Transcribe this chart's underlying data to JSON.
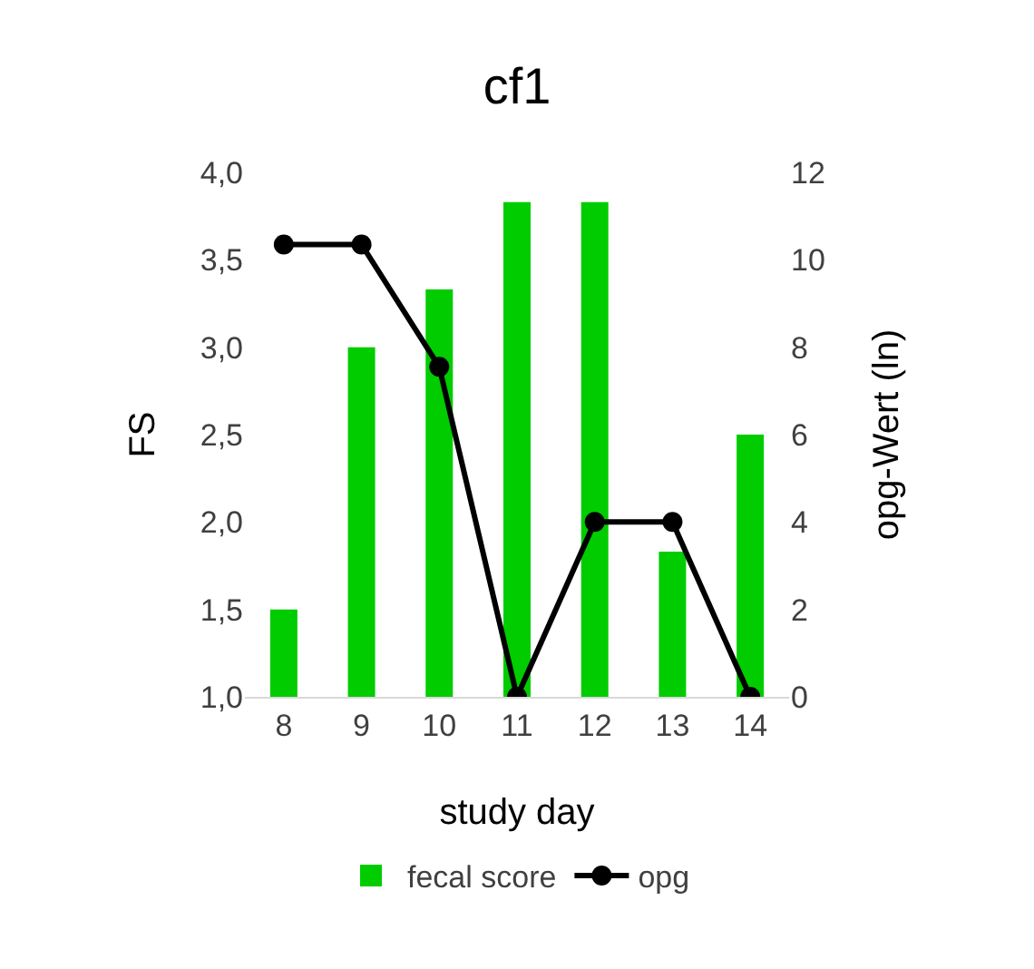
{
  "chart_data": {
    "type": "bar",
    "title": "cf1",
    "xlabel": "study day",
    "ylabel": "FS",
    "y2label": "opg-Wert (ln)",
    "categories": [
      "8",
      "9",
      "10",
      "11",
      "12",
      "13",
      "14"
    ],
    "series": [
      {
        "name": "fecal score",
        "color": "#00cc00",
        "values": [
          1.5,
          3.0,
          3.33,
          3.83,
          3.83,
          1.83,
          2.5
        ]
      },
      {
        "name": "opg",
        "type": "line",
        "axis": "y2",
        "color": "#000000",
        "marker": "circle",
        "line_style": "solid",
        "values": [
          10.35,
          10.35,
          7.55,
          0,
          4,
          4,
          0
        ]
      }
    ],
    "ylim": [
      1,
      4
    ],
    "yticks": [
      {
        "value": 1,
        "label": "1,0"
      },
      {
        "value": 1.5,
        "label": "1,5"
      },
      {
        "value": 2,
        "label": "2,0"
      },
      {
        "value": 2.5,
        "label": "2,5"
      },
      {
        "value": 3,
        "label": "3,0"
      },
      {
        "value": 3.5,
        "label": "3,5"
      },
      {
        "value": 4,
        "label": "4,0"
      }
    ],
    "y2lim": [
      0,
      12
    ],
    "y2ticks": [
      0,
      2,
      4,
      6,
      8,
      10,
      12
    ],
    "grid": false,
    "legend": "bottom"
  }
}
